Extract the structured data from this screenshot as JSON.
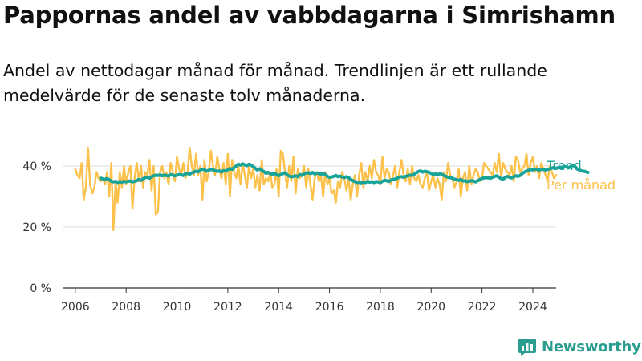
{
  "chart_data": {
    "type": "line",
    "title": "Pappornas andel av vabbdagarna i Simrishamn",
    "subtitle": "Andel av nettodagar månad för månad. Trendlinjen är ett rullande medelvärde för de senaste tolv månaderna.",
    "xlabel": "",
    "ylabel": "",
    "xlim": [
      "2005-07",
      "2024-12"
    ],
    "ylim": [
      0,
      45
    ],
    "x_ticks": [
      "2006",
      "2008",
      "2010",
      "2012",
      "2014",
      "2016",
      "2018",
      "2020",
      "2022",
      "2024"
    ],
    "y_ticks": [
      {
        "value": 0,
        "label": "0 %"
      },
      {
        "value": 20,
        "label": "20 %"
      },
      {
        "value": 40,
        "label": "40 %"
      }
    ],
    "grid": true,
    "legend_placement": "right, at line ends",
    "series": [
      {
        "name": "Per månad",
        "color": "#fcc14a",
        "x_start": "2006-01",
        "x_step": "1 month",
        "values": [
          39,
          37,
          36,
          41,
          29,
          33,
          46,
          34,
          31,
          33,
          38,
          36,
          35,
          36,
          34,
          38,
          30,
          41,
          19,
          35,
          28,
          38,
          33,
          40,
          34,
          38,
          40,
          26,
          36,
          41,
          35,
          40,
          33,
          38,
          37,
          42,
          32,
          40,
          24,
          25,
          38,
          40,
          36,
          38,
          34,
          41,
          38,
          35,
          43,
          39,
          37,
          41,
          36,
          38,
          46,
          40,
          37,
          44,
          37,
          40,
          29,
          42,
          35,
          38,
          45,
          40,
          37,
          43,
          39,
          36,
          41,
          34,
          44,
          30,
          42,
          38,
          36,
          40,
          34,
          41,
          37,
          33,
          40,
          36,
          39,
          33,
          37,
          32,
          42,
          34,
          36,
          35,
          38,
          33,
          34,
          39,
          30,
          45,
          44,
          38,
          33,
          40,
          35,
          43,
          31,
          39,
          36,
          37,
          40,
          33,
          39,
          34,
          29,
          36,
          38,
          35,
          37,
          30,
          38,
          34,
          36,
          31,
          32,
          28,
          35,
          33,
          38,
          36,
          32,
          36,
          29,
          34,
          37,
          30,
          37,
          41,
          33,
          38,
          35,
          40,
          36,
          42,
          38,
          37,
          34,
          43,
          36,
          39,
          38,
          34,
          37,
          40,
          33,
          38,
          42,
          37,
          35,
          39,
          34,
          40,
          36,
          35,
          37,
          34,
          33,
          36,
          38,
          32,
          35,
          37,
          33,
          36,
          34,
          29,
          38,
          35,
          41,
          37,
          36,
          33,
          35,
          39,
          30,
          36,
          38,
          32,
          40,
          34,
          37,
          39,
          38,
          35,
          36,
          41,
          40,
          39,
          38,
          37,
          41,
          38,
          44,
          36,
          41,
          39,
          38,
          37,
          40,
          35,
          43,
          42,
          38,
          39,
          40,
          44,
          37,
          41,
          43,
          38,
          40,
          36,
          41,
          39,
          37,
          35,
          40,
          38,
          36,
          37
        ]
      },
      {
        "name": "Trend",
        "color": "#1aa398",
        "x_start": "2007-01",
        "x_step": "1 month",
        "values": [
          36,
          35.8,
          35.6,
          35.9,
          35.5,
          35,
          34.8,
          35,
          34.6,
          34.9,
          34.7,
          35,
          34.8,
          35,
          35.1,
          34.8,
          35,
          35.2,
          35.6,
          35.3,
          35.8,
          36.2,
          36.4,
          36,
          36.5,
          36.8,
          37,
          36.9,
          37.1,
          36.8,
          37,
          36.9,
          36.7,
          37.2,
          37,
          36.8,
          37,
          37.2,
          37.1,
          36.9,
          37.4,
          37.6,
          37.3,
          37.8,
          38,
          38.3,
          38.1,
          38.6,
          39,
          38.8,
          38.3,
          38.6,
          38.9,
          38.7,
          38.5,
          38.2,
          38.4,
          38,
          38.5,
          38.3,
          38.8,
          39.2,
          38.9,
          39.5,
          40,
          40.6,
          40.3,
          40.7,
          40.4,
          40.1,
          40.6,
          40.3,
          39.8,
          39.2,
          38.7,
          39.1,
          38.6,
          38.2,
          37.6,
          37.9,
          37.5,
          37.3,
          37.6,
          37.2,
          36.8,
          37.2,
          37.5,
          37.8,
          37.1,
          36.7,
          36.4,
          36.6,
          36.8,
          36.5,
          37.2,
          36.9,
          37.4,
          37.7,
          37.8,
          37.5,
          37.9,
          37.4,
          37.7,
          37.5,
          37.3,
          37.6,
          37.2,
          36.6,
          36.3,
          36.4,
          36.6,
          36.9,
          36.5,
          36.7,
          36.4,
          36.2,
          36.5,
          36.2,
          35.6,
          35.2,
          34.9,
          34.6,
          34.7,
          34.5,
          34.8,
          34.6,
          35,
          34.7,
          34.9,
          34.6,
          34.9,
          34.8,
          34.6,
          35,
          35.3,
          35.2,
          34.9,
          35.4,
          35.6,
          35.7,
          36,
          36.4,
          36.5,
          36.3,
          36.6,
          36.8,
          37,
          36.9,
          37.3,
          37.8,
          38.2,
          38.4,
          38,
          38.3,
          38.1,
          37.9,
          37.6,
          37.2,
          37.4,
          37.1,
          37.5,
          37.3,
          36.9,
          36.6,
          36.3,
          36.2,
          36,
          35.7,
          35.5,
          35.3,
          35.6,
          35.1,
          35.2,
          34.9,
          35,
          35.2,
          35.1,
          34.8,
          35.2,
          35.6,
          35.9,
          36.1,
          36.2,
          36.1,
          36,
          36.3,
          36.6,
          36.8,
          36.3,
          35.9,
          35.7,
          36.3,
          36.6,
          36.3,
          36.1,
          36.5,
          36.8,
          36.6,
          36.9,
          37.5,
          38,
          38.3,
          38.6,
          38.8,
          38.7,
          39,
          38.9,
          38.6,
          39,
          38.9,
          38.7,
          38.9,
          39.1,
          39.3,
          39.5,
          39.2,
          39.5,
          39.6,
          39.4,
          39.8,
          39.7,
          39.4,
          39.9,
          40.3,
          39.8,
          39,
          38.7,
          38.4,
          38.3,
          38.1,
          37.9
        ]
      }
    ],
    "footer": {
      "brand": "Newsworthy"
    }
  }
}
